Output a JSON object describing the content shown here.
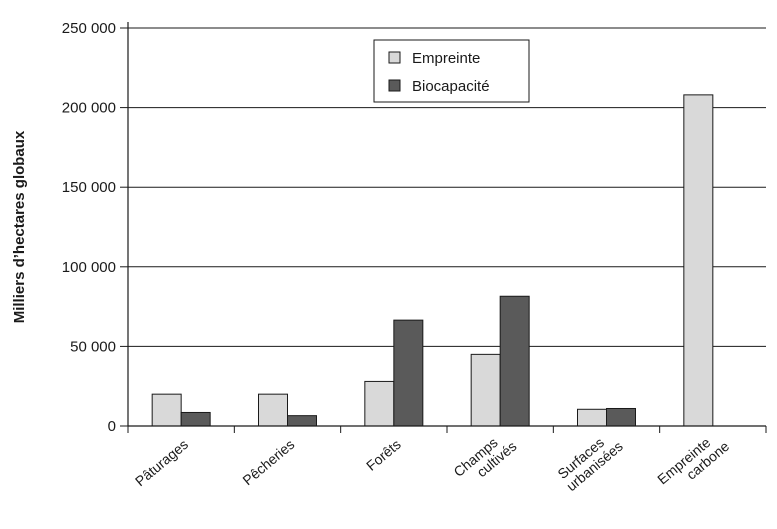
{
  "chart_data": {
    "type": "bar",
    "categories": [
      [
        "Pâturages"
      ],
      [
        "Pêcheries"
      ],
      [
        "Forêts"
      ],
      [
        "Champs",
        "cultivés"
      ],
      [
        "Surfaces",
        "urbanisées"
      ],
      [
        "Empreinte",
        "carbone"
      ]
    ],
    "series": [
      {
        "name": "Empreinte",
        "values": [
          20000,
          20000,
          28000,
          45000,
          10500,
          208000
        ],
        "color": "#d9d9d9"
      },
      {
        "name": "Biocapacité",
        "values": [
          8500,
          6500,
          66500,
          81500,
          11000,
          0
        ],
        "color": "#5a5a5a"
      }
    ],
    "ylabel": "Milliers d’hectares globaux",
    "ylim": [
      0,
      250000
    ],
    "yticks": [
      {
        "value": 0,
        "label": "0"
      },
      {
        "value": 50000,
        "label": "50 000"
      },
      {
        "value": 100000,
        "label": "100 000"
      },
      {
        "value": 150000,
        "label": "150 000"
      },
      {
        "value": 200000,
        "label": "200 000"
      },
      {
        "value": 250000,
        "label": "250 000"
      }
    ],
    "grid": true,
    "legend_position": "top-center"
  }
}
